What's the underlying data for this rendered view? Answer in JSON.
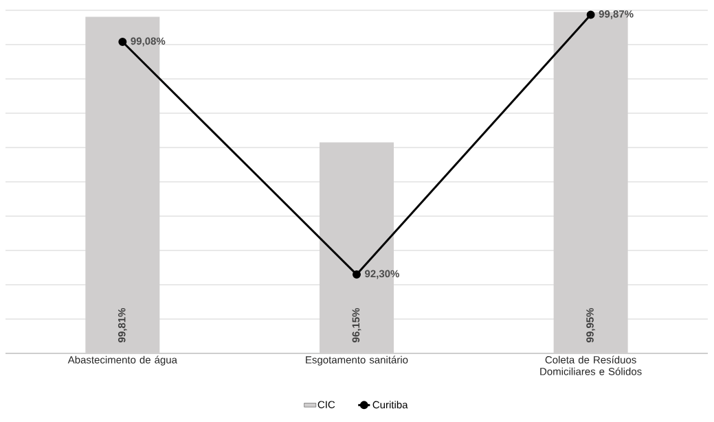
{
  "chart_data": {
    "type": "bar",
    "categories": [
      "Abastecimento de água",
      "Esgotamento sanitário",
      "Coleta de Resíduos Domiciliares e Sólidos"
    ],
    "series": [
      {
        "name": "CIC",
        "color": "#d0cece",
        "values": [
          99.81,
          96.15,
          99.95
        ],
        "value_labels": [
          "99,81%",
          "96,15%",
          "99,95%"
        ]
      },
      {
        "name": "Curitiba",
        "type": "line",
        "color": "#000000",
        "marker": "circle",
        "values": [
          99.08,
          92.3,
          99.87
        ],
        "value_labels": [
          "99,08%",
          "92,30%",
          "99,87%"
        ]
      }
    ],
    "ylim": [
      90,
      100
    ],
    "yticks": [
      {
        "value": 90,
        "label": null
      },
      {
        "value": 91,
        "label": null
      },
      {
        "value": 92,
        "label": null
      },
      {
        "value": 93,
        "label": null
      },
      {
        "value": 94,
        "label": null
      },
      {
        "value": 95,
        "label": null
      },
      {
        "value": 96,
        "label": null
      },
      {
        "value": 97,
        "label": null
      },
      {
        "value": 98,
        "label": null
      },
      {
        "value": 99,
        "label": null
      },
      {
        "value": 100,
        "label": null
      }
    ],
    "grid": "y",
    "tick_labels": "x",
    "legend": "bottom"
  }
}
